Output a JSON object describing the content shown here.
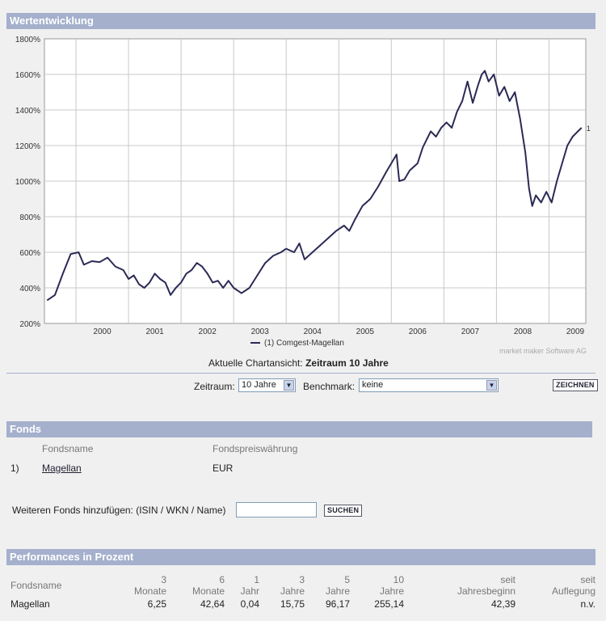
{
  "sections": {
    "wertentwicklung": "Wertentwicklung",
    "fonds": "Fonds",
    "performances": "Performances in Prozent"
  },
  "chart_data": {
    "type": "line",
    "title": "Wertentwicklung",
    "y_ticks": [
      "200%",
      "400%",
      "600%",
      "800%",
      "1000%",
      "1200%",
      "1400%",
      "1600%",
      "1800%"
    ],
    "ylim": [
      200,
      1800
    ],
    "x_ticks": [
      "2000",
      "2001",
      "2002",
      "2003",
      "2004",
      "2005",
      "2006",
      "2007",
      "2008",
      "2009"
    ],
    "xlim": [
      1999.4,
      2009.7
    ],
    "grid": true,
    "legend": "(1)  Comgest-Magellan",
    "end_label": "1",
    "series": [
      {
        "name": "Comgest-Magellan",
        "color": "#2a2a55",
        "points": [
          [
            1999.45,
            330
          ],
          [
            1999.6,
            360
          ],
          [
            1999.75,
            480
          ],
          [
            1999.9,
            590
          ],
          [
            2000.05,
            600
          ],
          [
            2000.15,
            530
          ],
          [
            2000.3,
            550
          ],
          [
            2000.45,
            545
          ],
          [
            2000.6,
            570
          ],
          [
            2000.75,
            520
          ],
          [
            2000.9,
            500
          ],
          [
            2001.0,
            450
          ],
          [
            2001.1,
            470
          ],
          [
            2001.2,
            420
          ],
          [
            2001.3,
            400
          ],
          [
            2001.4,
            430
          ],
          [
            2001.5,
            480
          ],
          [
            2001.6,
            450
          ],
          [
            2001.7,
            430
          ],
          [
            2001.8,
            360
          ],
          [
            2001.9,
            400
          ],
          [
            2002.0,
            430
          ],
          [
            2002.1,
            480
          ],
          [
            2002.2,
            500
          ],
          [
            2002.3,
            540
          ],
          [
            2002.4,
            520
          ],
          [
            2002.5,
            480
          ],
          [
            2002.6,
            430
          ],
          [
            2002.7,
            440
          ],
          [
            2002.8,
            400
          ],
          [
            2002.9,
            440
          ],
          [
            2003.0,
            400
          ],
          [
            2003.15,
            370
          ],
          [
            2003.3,
            400
          ],
          [
            2003.45,
            470
          ],
          [
            2003.6,
            540
          ],
          [
            2003.75,
            580
          ],
          [
            2003.9,
            600
          ],
          [
            2004.0,
            620
          ],
          [
            2004.15,
            600
          ],
          [
            2004.25,
            650
          ],
          [
            2004.35,
            560
          ],
          [
            2004.5,
            600
          ],
          [
            2004.65,
            640
          ],
          [
            2004.8,
            680
          ],
          [
            2004.95,
            720
          ],
          [
            2005.1,
            750
          ],
          [
            2005.2,
            720
          ],
          [
            2005.3,
            780
          ],
          [
            2005.45,
            860
          ],
          [
            2005.6,
            900
          ],
          [
            2005.75,
            970
          ],
          [
            2005.9,
            1050
          ],
          [
            2006.0,
            1100
          ],
          [
            2006.1,
            1150
          ],
          [
            2006.15,
            1000
          ],
          [
            2006.25,
            1010
          ],
          [
            2006.35,
            1060
          ],
          [
            2006.5,
            1100
          ],
          [
            2006.6,
            1190
          ],
          [
            2006.75,
            1280
          ],
          [
            2006.85,
            1250
          ],
          [
            2006.95,
            1300
          ],
          [
            2007.05,
            1330
          ],
          [
            2007.15,
            1300
          ],
          [
            2007.25,
            1390
          ],
          [
            2007.35,
            1450
          ],
          [
            2007.45,
            1560
          ],
          [
            2007.55,
            1440
          ],
          [
            2007.65,
            1540
          ],
          [
            2007.72,
            1600
          ],
          [
            2007.78,
            1620
          ],
          [
            2007.85,
            1560
          ],
          [
            2007.95,
            1600
          ],
          [
            2008.05,
            1480
          ],
          [
            2008.15,
            1530
          ],
          [
            2008.25,
            1450
          ],
          [
            2008.35,
            1500
          ],
          [
            2008.45,
            1350
          ],
          [
            2008.55,
            1160
          ],
          [
            2008.62,
            960
          ],
          [
            2008.68,
            860
          ],
          [
            2008.75,
            920
          ],
          [
            2008.85,
            880
          ],
          [
            2008.95,
            940
          ],
          [
            2009.05,
            880
          ],
          [
            2009.15,
            1000
          ],
          [
            2009.25,
            1100
          ],
          [
            2009.35,
            1200
          ],
          [
            2009.45,
            1250
          ],
          [
            2009.55,
            1280
          ],
          [
            2009.62,
            1300
          ]
        ]
      }
    ]
  },
  "chart_view": {
    "label": "Aktuelle Chartansicht:",
    "value": "Zeitraum 10 Jahre"
  },
  "credit": "market maker Software AG",
  "controls": {
    "zeitraum_label": "Zeitraum:",
    "zeitraum_value": "10 Jahre",
    "benchmark_label": "Benchmark:",
    "benchmark_value": "keine",
    "zeichnen_button": "ZEICHNEN"
  },
  "fonds": {
    "col_name": "Fondsname",
    "col_currency": "Fondspreiswährung",
    "rows": [
      {
        "index": "1)",
        "name": "Magellan",
        "currency": "EUR"
      }
    ],
    "add_label": "Weiteren Fonds hinzufügen: (ISIN / WKN / Name)",
    "add_value": "",
    "suchen_button": "SUCHEN"
  },
  "performance": {
    "col_name": "Fondsname",
    "headers": [
      [
        "3",
        "Monate"
      ],
      [
        "6",
        "Monate"
      ],
      [
        "1",
        "Jahr"
      ],
      [
        "3",
        "Jahre"
      ],
      [
        "5",
        "Jahre"
      ],
      [
        "10",
        "Jahre"
      ],
      [
        "seit",
        "Jahresbeginn"
      ],
      [
        "seit",
        "Auflegung"
      ]
    ],
    "row": {
      "name": "Magellan",
      "values": [
        "6,25",
        "42,64",
        "0,04",
        "15,75",
        "96,17",
        "255,14",
        "42,39",
        "n.v."
      ]
    }
  }
}
